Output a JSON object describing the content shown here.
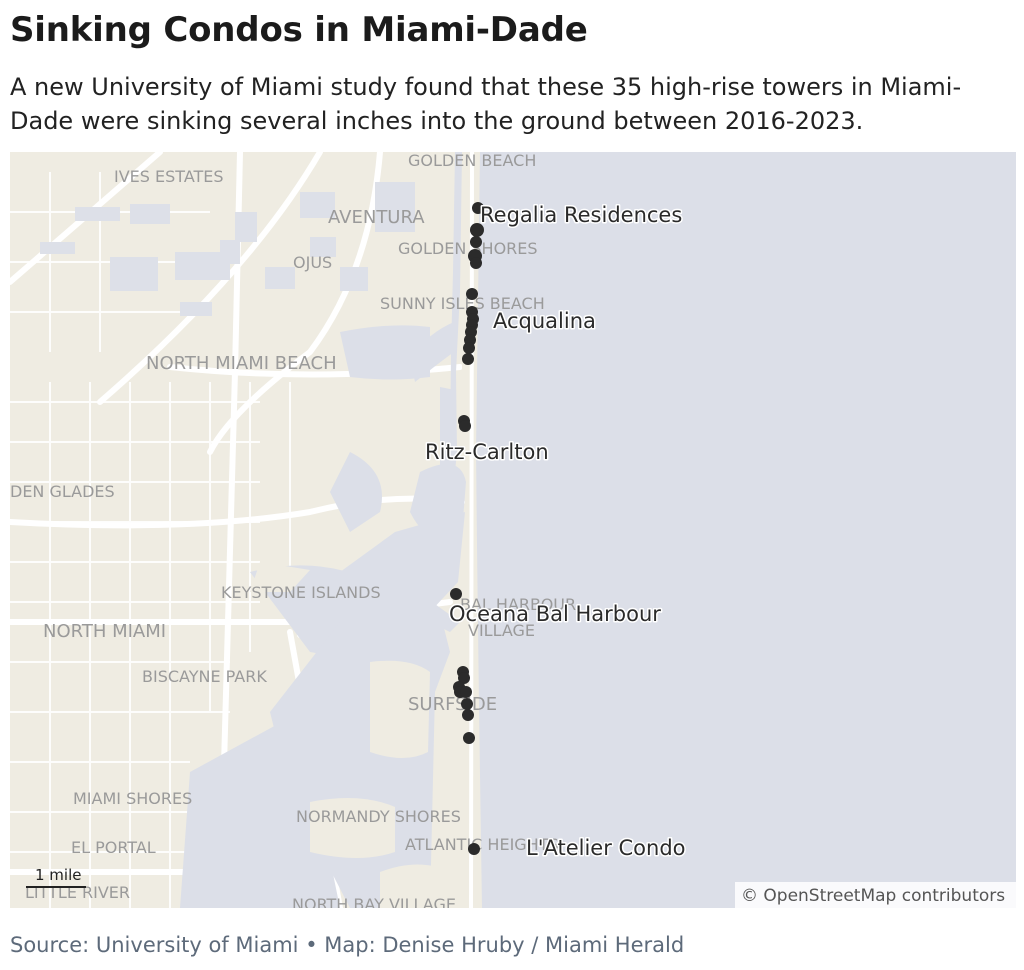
{
  "header": {
    "title": "Sinking Condos in Miami-Dade",
    "subtitle": "A new University of Miami study found that these 35 high-rise towers in Miami-Dade were sinking several inches into the ground between 2016-2023."
  },
  "map": {
    "colors": {
      "land": "#efece2",
      "water": "#dcdfe8",
      "marker": "#2b2b2b",
      "roads": "#ffffff",
      "place_label": "#9a9a9a"
    },
    "place_labels": {
      "golden_beach": "GOLDEN BEACH",
      "ives_estates": "IVES ESTATES",
      "aventura": "AVENTURA",
      "golden_shores": "GOLDEN SHORES",
      "ojus": "OJUS",
      "sunny_isles_beach": "SUNNY ISLES BEACH",
      "north_miami_beach": "NORTH MIAMI BEACH",
      "golden_glades": "DEN GLADES",
      "keystone_islands": "KEYSTONE ISLANDS",
      "bal_harbour": "BAL HARBOUR",
      "village": "VILLAGE",
      "north_miami": "NORTH MIAMI",
      "biscayne_park": "BISCAYNE PARK",
      "surfside": "SURFSIDE",
      "miami_shores": "MIAMI SHORES",
      "normandy_shores": "NORMANDY SHORES",
      "el_portal": "EL PORTAL",
      "atlantic_heights": "ATLANTIC HEIGHTS",
      "little_river": "LITTLE RIVER",
      "north_bay_village": "NORTH BAY VILLAGE"
    },
    "condo_labels": {
      "regalia": "Regalia Residences",
      "acqualina": "Acqualina",
      "ritz_carlton": "Ritz-Carlton",
      "oceana": "Oceana Bal Harbour",
      "latelier": "L'Atelier Condo"
    },
    "scale_label": "1 mile",
    "attribution": "© OpenStreetMap contributors"
  },
  "footer": {
    "source": "Source: University of Miami • Map: Denise Hruby / Miami Herald"
  }
}
